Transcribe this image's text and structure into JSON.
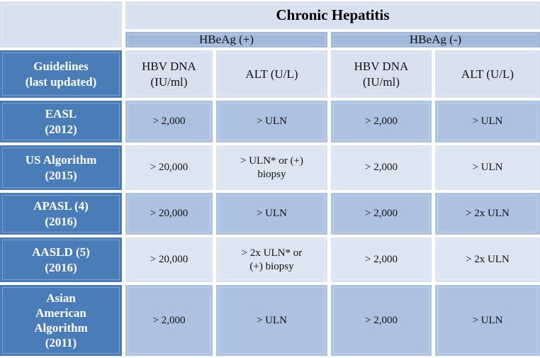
{
  "colors": {
    "dark_blue": "#4a7db8",
    "medium_blue": "#a0b8da",
    "light_blue": "#d7e1ef",
    "band_dark": "#adc1e0",
    "band_light": "#dce5f2",
    "text_dark": "#121212",
    "text_light": "#ffffff",
    "gap_white": "#ffffff"
  },
  "header": {
    "title": "Chronic Hepatitis",
    "corner": "",
    "groups": [
      "HBeAg (+)",
      "HBeAg (-)"
    ],
    "row_header": "Guidelines\n(last updated)",
    "columns": [
      "HBV DNA\n(IU/ml)",
      "ALT (U/L)",
      "HBV DNA\n(IU/ml)",
      "ALT (U/L)"
    ]
  },
  "rows": [
    {
      "label": "EASL\n(2012)",
      "cells": [
        "> 2,000",
        "> ULN",
        "> 2,000",
        "> ULN"
      ]
    },
    {
      "label": "US Algorithm\n(2015)",
      "cells": [
        "> 20,000",
        "> ULN* or (+)\nbiopsy",
        "> 2,000",
        "> ULN"
      ]
    },
    {
      "label": "APASL (4)\n(2016)",
      "cells": [
        "> 20,000",
        "> ULN",
        "> 2,000",
        "> 2x ULN"
      ]
    },
    {
      "label": "AASLD (5)\n(2016)",
      "cells": [
        "> 20,000",
        "> 2x ULN* or\n(+) biopsy",
        "> 2,000",
        "> 2x ULN"
      ]
    },
    {
      "label": "Asian\nAmerican\nAlgorithm\n(2011)",
      "cells": [
        "> 2,000",
        "> ULN",
        "> 2,000",
        "> ULN"
      ]
    }
  ]
}
